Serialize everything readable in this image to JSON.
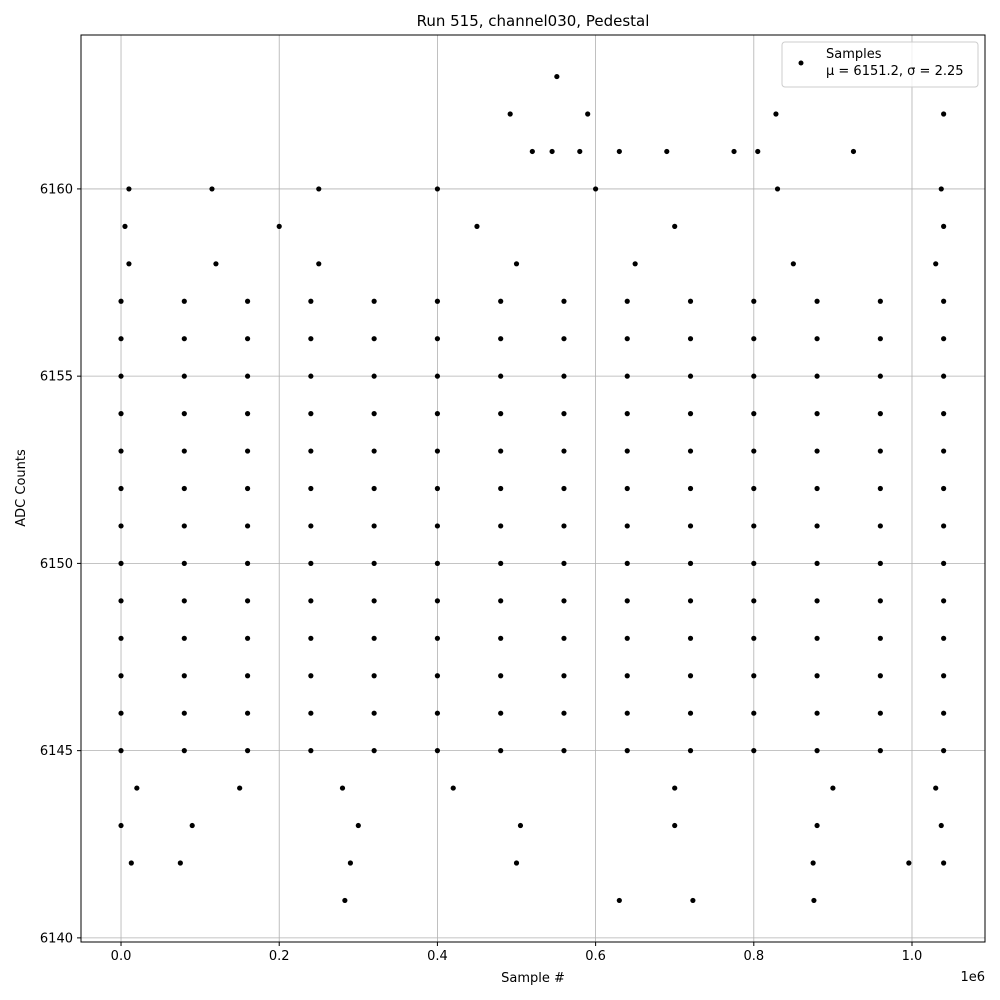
{
  "chart_data": {
    "type": "scatter",
    "title": "Run 515, channel030, Pedestal",
    "x_label": "Sample #",
    "y_label": "ADC Counts",
    "x_offset_label": "1e6",
    "series": [
      {
        "name": "Samples",
        "color": "#000000",
        "x": [
          0,
          80000,
          160000,
          240000,
          320000,
          400000,
          480000,
          560000,
          640000,
          720000,
          800000,
          880000,
          960000,
          1040000,
          0,
          80000,
          160000,
          240000,
          320000,
          400000,
          480000,
          560000,
          640000,
          720000,
          800000,
          880000,
          960000,
          1040000,
          0,
          80000,
          160000,
          240000,
          320000,
          400000,
          480000,
          560000,
          640000,
          720000,
          800000,
          880000,
          960000,
          1040000,
          0,
          80000,
          160000,
          240000,
          320000,
          400000,
          480000,
          560000,
          640000,
          720000,
          800000,
          880000,
          960000,
          1040000,
          0,
          80000,
          160000,
          240000,
          320000,
          400000,
          480000,
          560000,
          640000,
          720000,
          800000,
          880000,
          960000,
          1040000,
          0,
          80000,
          160000,
          240000,
          320000,
          400000,
          480000,
          560000,
          640000,
          720000,
          800000,
          880000,
          960000,
          1040000,
          0,
          80000,
          160000,
          240000,
          320000,
          400000,
          480000,
          560000,
          640000,
          720000,
          800000,
          880000,
          960000,
          1040000,
          0,
          80000,
          160000,
          240000,
          320000,
          400000,
          480000,
          560000,
          640000,
          720000,
          800000,
          880000,
          960000,
          1040000,
          0,
          80000,
          160000,
          240000,
          320000,
          400000,
          480000,
          560000,
          640000,
          720000,
          800000,
          880000,
          960000,
          1040000,
          0,
          80000,
          160000,
          240000,
          320000,
          400000,
          480000,
          560000,
          640000,
          720000,
          800000,
          880000,
          960000,
          1040000,
          0,
          80000,
          160000,
          240000,
          320000,
          400000,
          480000,
          560000,
          640000,
          720000,
          800000,
          880000,
          960000,
          1040000,
          0,
          80000,
          160000,
          240000,
          320000,
          400000,
          480000,
          560000,
          640000,
          720000,
          800000,
          880000,
          960000,
          1040000,
          0,
          80000,
          160000,
          240000,
          320000,
          400000,
          480000,
          560000,
          640000,
          720000,
          800000,
          880000,
          960000,
          1040000,
          20000,
          150000,
          280000,
          420000,
          700000,
          900000,
          1030000,
          10000,
          120000,
          250000,
          500000,
          650000,
          850000,
          1030000,
          5000,
          200000,
          450000,
          700000,
          1040000,
          10000,
          115000,
          250000,
          400000,
          600000,
          830000,
          1037000,
          520000,
          545000,
          580000,
          630000,
          690000,
          775000,
          805000,
          926000,
          492000,
          590000,
          828000,
          1040000,
          551000,
          0,
          90000,
          300000,
          505000,
          700000,
          880000,
          1037000,
          13000,
          75000,
          290000,
          500000,
          875000,
          996000,
          1040000,
          283000,
          630000,
          723000,
          876000
        ],
        "y": [
          6145,
          6145,
          6145,
          6145,
          6145,
          6145,
          6145,
          6145,
          6145,
          6145,
          6145,
          6145,
          6145,
          6145,
          6146,
          6146,
          6146,
          6146,
          6146,
          6146,
          6146,
          6146,
          6146,
          6146,
          6146,
          6146,
          6146,
          6146,
          6147,
          6147,
          6147,
          6147,
          6147,
          6147,
          6147,
          6147,
          6147,
          6147,
          6147,
          6147,
          6147,
          6147,
          6148,
          6148,
          6148,
          6148,
          6148,
          6148,
          6148,
          6148,
          6148,
          6148,
          6148,
          6148,
          6148,
          6148,
          6149,
          6149,
          6149,
          6149,
          6149,
          6149,
          6149,
          6149,
          6149,
          6149,
          6149,
          6149,
          6149,
          6149,
          6150,
          6150,
          6150,
          6150,
          6150,
          6150,
          6150,
          6150,
          6150,
          6150,
          6150,
          6150,
          6150,
          6150,
          6151,
          6151,
          6151,
          6151,
          6151,
          6151,
          6151,
          6151,
          6151,
          6151,
          6151,
          6151,
          6151,
          6151,
          6152,
          6152,
          6152,
          6152,
          6152,
          6152,
          6152,
          6152,
          6152,
          6152,
          6152,
          6152,
          6152,
          6152,
          6153,
          6153,
          6153,
          6153,
          6153,
          6153,
          6153,
          6153,
          6153,
          6153,
          6153,
          6153,
          6153,
          6153,
          6154,
          6154,
          6154,
          6154,
          6154,
          6154,
          6154,
          6154,
          6154,
          6154,
          6154,
          6154,
          6154,
          6154,
          6155,
          6155,
          6155,
          6155,
          6155,
          6155,
          6155,
          6155,
          6155,
          6155,
          6155,
          6155,
          6155,
          6155,
          6156,
          6156,
          6156,
          6156,
          6156,
          6156,
          6156,
          6156,
          6156,
          6156,
          6156,
          6156,
          6156,
          6156,
          6157,
          6157,
          6157,
          6157,
          6157,
          6157,
          6157,
          6157,
          6157,
          6157,
          6157,
          6157,
          6157,
          6157,
          6144,
          6144,
          6144,
          6144,
          6144,
          6144,
          6144,
          6158,
          6158,
          6158,
          6158,
          6158,
          6158,
          6158,
          6159,
          6159,
          6159,
          6159,
          6159,
          6160,
          6160,
          6160,
          6160,
          6160,
          6160,
          6160,
          6161,
          6161,
          6161,
          6161,
          6161,
          6161,
          6161,
          6161,
          6162,
          6162,
          6162,
          6162,
          6163,
          6143,
          6143,
          6143,
          6143,
          6143,
          6143,
          6143,
          6142,
          6142,
          6142,
          6142,
          6142,
          6142,
          6142,
          6141,
          6141,
          6141,
          6141
        ]
      }
    ],
    "legend_note": "μ = 6151.2, σ = 2.25",
    "legend_position": "upper right",
    "xlim": [
      -50600,
      1092300
    ],
    "ylim": [
      6139.89,
      6164.11
    ],
    "xticks": [
      {
        "value": 0,
        "label": "0.0"
      },
      {
        "value": 200000,
        "label": "0.2"
      },
      {
        "value": 400000,
        "label": "0.4"
      },
      {
        "value": 600000,
        "label": "0.6"
      },
      {
        "value": 800000,
        "label": "0.8"
      },
      {
        "value": 1000000,
        "label": "1.0"
      }
    ],
    "yticks": [
      6140,
      6145,
      6150,
      6155,
      6160
    ],
    "grid": true
  }
}
